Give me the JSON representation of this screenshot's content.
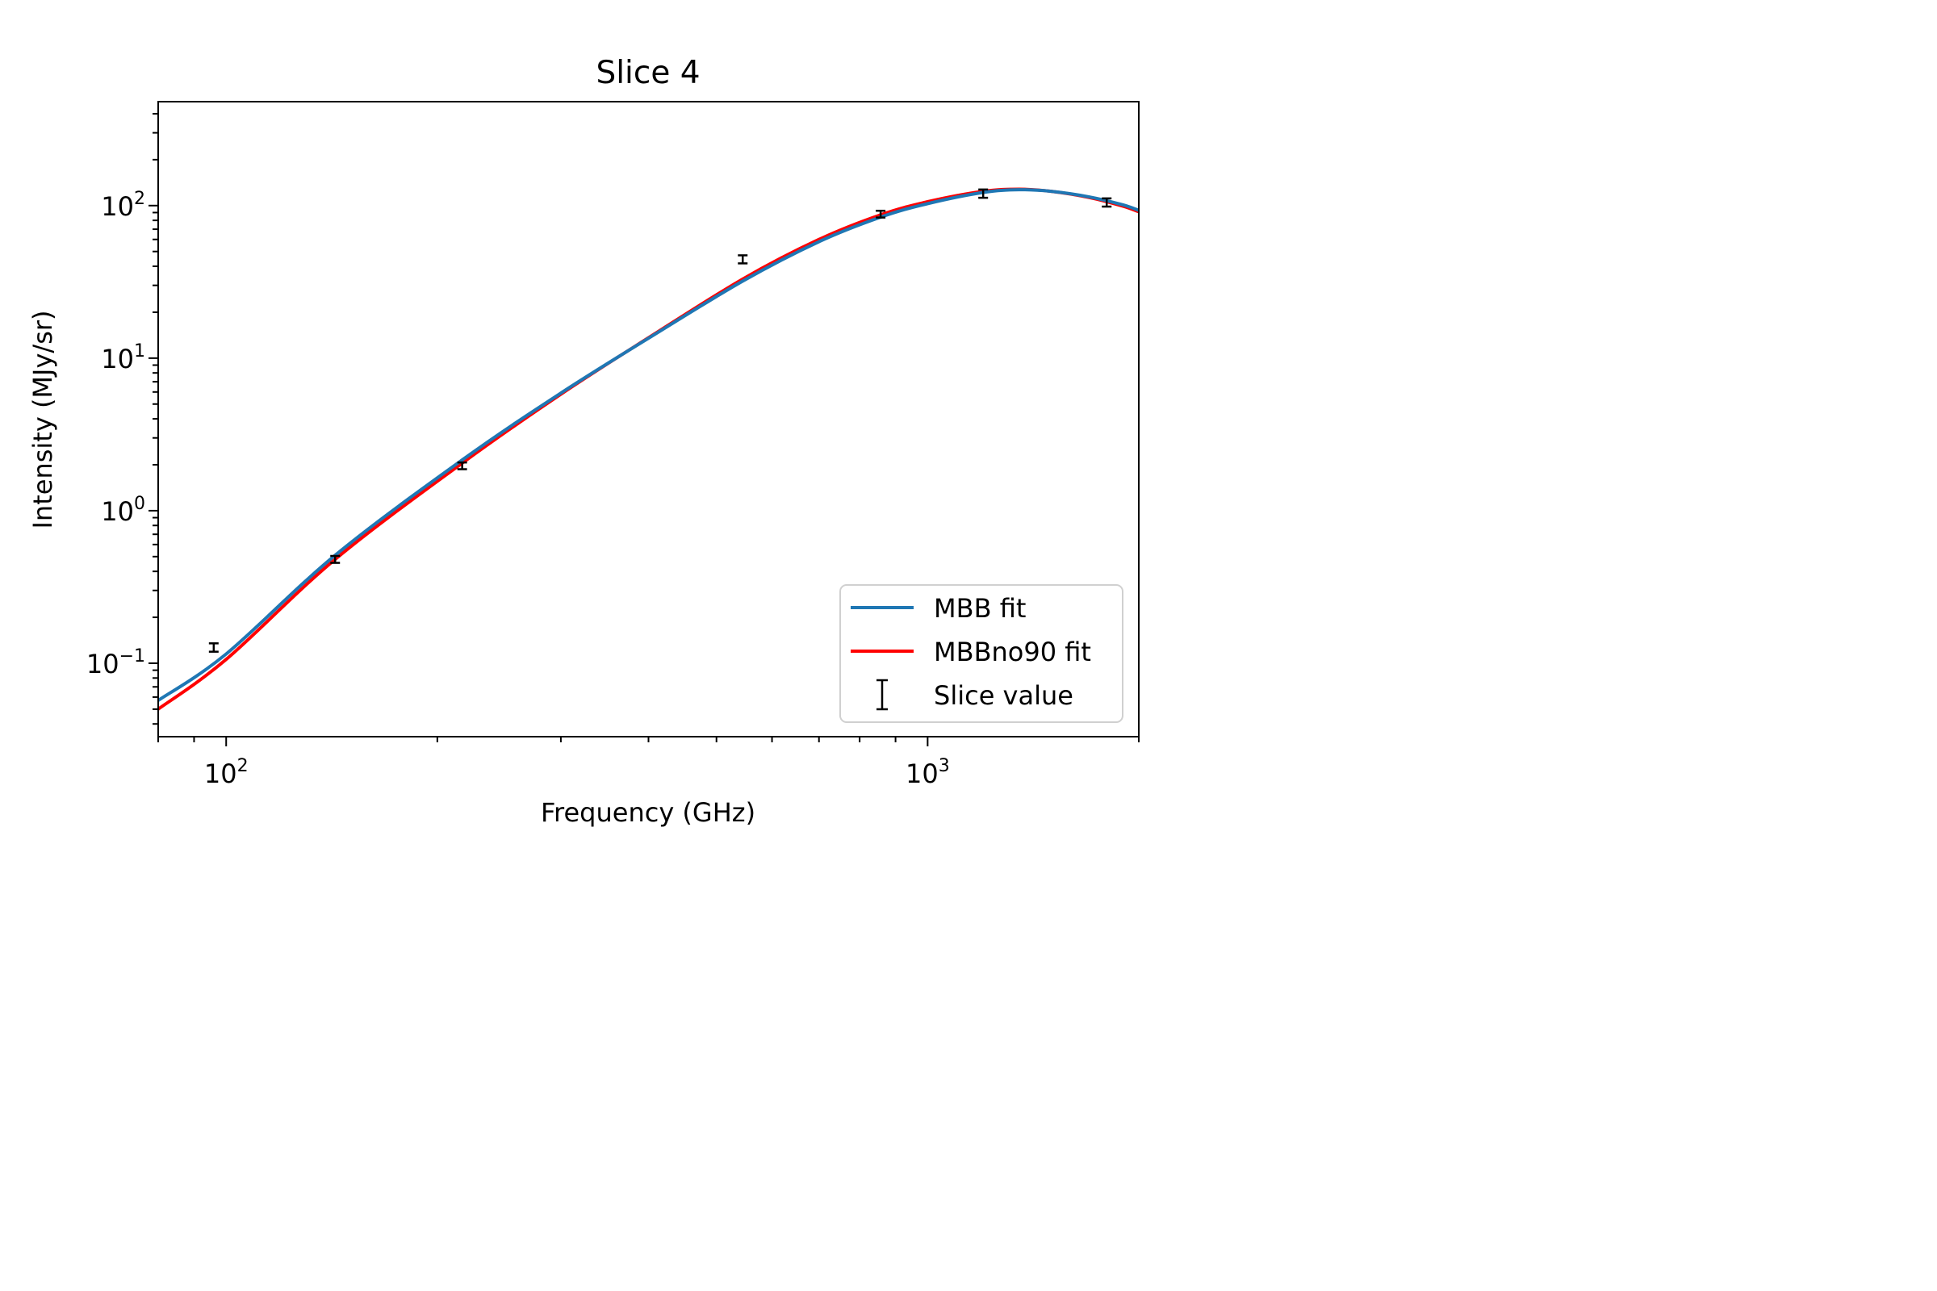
{
  "chart_data": {
    "type": "line",
    "title": "Slice 4",
    "xlabel": "Frequency (GHz)",
    "ylabel": "Intensity (MJy/sr)",
    "xscale": "log",
    "yscale": "log",
    "xlim": [
      80,
      2000
    ],
    "ylim": [
      0.033,
      480
    ],
    "x_ticks": [
      {
        "value": 100,
        "base": "10",
        "exp": "2"
      },
      {
        "value": 1000,
        "base": "10",
        "exp": "3"
      }
    ],
    "y_ticks": [
      {
        "value": 0.1,
        "base": "10",
        "exp": "−1"
      },
      {
        "value": 1,
        "base": "10",
        "exp": "0"
      },
      {
        "value": 10,
        "base": "10",
        "exp": "1"
      },
      {
        "value": 100,
        "base": "10",
        "exp": "2"
      }
    ],
    "grid": false,
    "legend_position": "lower-right",
    "series": [
      {
        "name": "MBB fit",
        "kind": "line",
        "color": "#1f77b4",
        "x": [
          80,
          100,
          143,
          217,
          300,
          400,
          545,
          700,
          857,
          1000,
          1200,
          1350,
          1500,
          1700,
          1900,
          2000
        ],
        "y": [
          0.057,
          0.115,
          0.51,
          2.15,
          5.9,
          13.5,
          32,
          58,
          84,
          103,
          122,
          127,
          124,
          114,
          101,
          93
        ]
      },
      {
        "name": "MBBno90 fit",
        "kind": "line",
        "color": "#ff0000",
        "x": [
          80,
          100,
          143,
          217,
          300,
          400,
          545,
          700,
          857,
          1000,
          1200,
          1350,
          1500,
          1700,
          1900,
          2000
        ],
        "y": [
          0.05,
          0.106,
          0.48,
          2.05,
          5.8,
          13.6,
          33,
          60,
          87,
          106,
          124,
          128,
          124,
          113,
          99,
          91
        ]
      },
      {
        "name": "Slice value",
        "kind": "errorbar",
        "color": "#000000",
        "x": [
          96,
          143,
          217,
          545,
          857,
          1200,
          1800
        ],
        "y": [
          0.127,
          0.48,
          1.97,
          44.5,
          88,
          120,
          105
        ],
        "yerr": [
          0.008,
          0.025,
          0.1,
          2.7,
          4.5,
          7.5,
          6.5
        ]
      }
    ]
  }
}
